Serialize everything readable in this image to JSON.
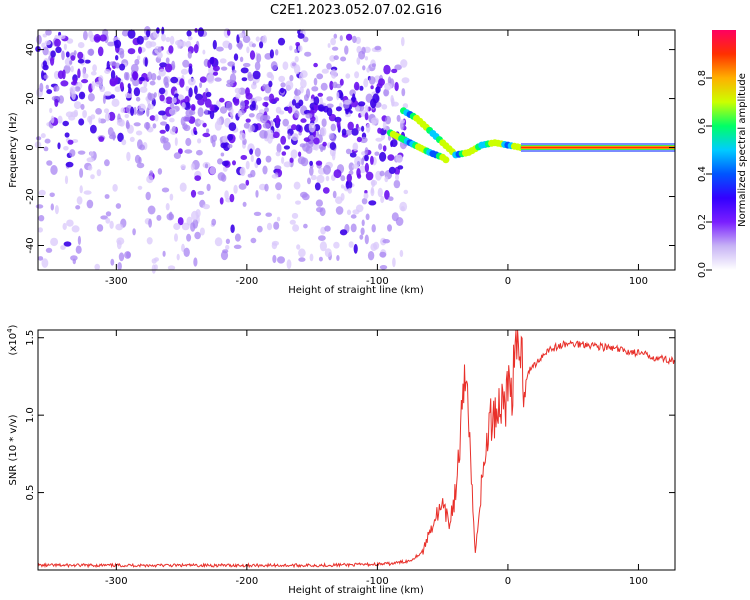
{
  "title": "C2E1.2023.052.07.02.G16",
  "chart_data": [
    {
      "type": "heatmap",
      "xlabel": "Height of straight line (km)",
      "ylabel": "Frequency (Hz)",
      "xlim": [
        -360,
        128
      ],
      "ylim": [
        -50,
        48
      ],
      "xticks": [
        -300,
        -200,
        -100,
        0,
        100
      ],
      "yticks": [
        -40,
        -20,
        0,
        20,
        40
      ],
      "colorbar": {
        "label": "Normalized spectral amplitude",
        "range": [
          0,
          1
        ],
        "ticks": [
          "0.0",
          "0.2",
          "0.4",
          "0.6",
          "0.8"
        ],
        "colors": [
          "#ffffff",
          "#c7b3f5",
          "#7a1fff",
          "#3300ff",
          "#0055ff",
          "#00ccff",
          "#00ff66",
          "#ccff00",
          "#ffb000",
          "#ff3000",
          "#ff0060"
        ]
      },
      "ridge": [
        {
          "x": -80,
          "y": 15
        },
        {
          "x": -70,
          "y": 12
        },
        {
          "x": -60,
          "y": 7
        },
        {
          "x": -50,
          "y": 2
        },
        {
          "x": -40,
          "y": -3
        },
        {
          "x": -30,
          "y": -2
        },
        {
          "x": -20,
          "y": 1
        },
        {
          "x": -10,
          "y": 2
        },
        {
          "x": 0,
          "y": 1
        },
        {
          "x": 10,
          "y": 0
        },
        {
          "x": 128,
          "y": 0
        }
      ],
      "ridge2": [
        {
          "x": -90,
          "y": 6
        },
        {
          "x": -75,
          "y": 2
        },
        {
          "x": -60,
          "y": -2
        },
        {
          "x": -50,
          "y": -4
        },
        {
          "x": -45,
          "y": -6
        }
      ]
    },
    {
      "type": "line",
      "xlabel": "Height of straight line (km)",
      "ylabel": "SNR (10 * v/v)",
      "scale_label": "(x10",
      "scale_exp": "4",
      "scale_close": ")",
      "xlim": [
        -360,
        128
      ],
      "ylim": [
        0,
        1.55
      ],
      "xticks": [
        -300,
        -200,
        -100,
        0,
        100
      ],
      "yticks": [
        "0.5",
        "1.0",
        "1.5"
      ],
      "series": [
        {
          "color": "#e8302a",
          "points": [
            [
              -360,
              0.03
            ],
            [
              -300,
              0.03
            ],
            [
              -250,
              0.03
            ],
            [
              -200,
              0.03
            ],
            [
              -150,
              0.03
            ],
            [
              -110,
              0.035
            ],
            [
              -90,
              0.04
            ],
            [
              -75,
              0.06
            ],
            [
              -65,
              0.12
            ],
            [
              -60,
              0.25
            ],
            [
              -55,
              0.35
            ],
            [
              -50,
              0.4
            ],
            [
              -45,
              0.3
            ],
            [
              -40,
              0.5
            ],
            [
              -35,
              1.0
            ],
            [
              -31,
              1.32
            ],
            [
              -28,
              0.6
            ],
            [
              -25,
              0.1
            ],
            [
              -22,
              0.4
            ],
            [
              -18,
              0.7
            ],
            [
              -15,
              0.9
            ],
            [
              -12,
              1.0
            ],
            [
              -8,
              1.05
            ],
            [
              -4,
              1.1
            ],
            [
              0,
              1.15
            ],
            [
              5,
              1.25
            ],
            [
              8,
              1.55
            ],
            [
              12,
              1.25
            ],
            [
              20,
              1.32
            ],
            [
              30,
              1.42
            ],
            [
              45,
              1.46
            ],
            [
              60,
              1.46
            ],
            [
              80,
              1.43
            ],
            [
              100,
              1.4
            ],
            [
              115,
              1.37
            ],
            [
              128,
              1.35
            ]
          ]
        }
      ]
    }
  ]
}
